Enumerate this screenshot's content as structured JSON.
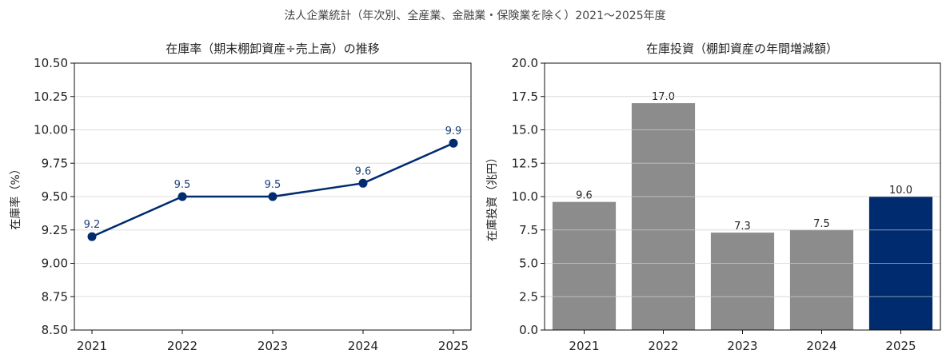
{
  "figure": {
    "suptitle": "法人企業統計（年次別、全産業、金融業・保険業を除く）2021〜2025年度"
  },
  "chart_data": [
    {
      "type": "line",
      "title": "在庫率（期末棚卸資産÷売上高）の推移",
      "xlabel": "",
      "ylabel": "在庫率（%）",
      "categories": [
        "2021",
        "2022",
        "2023",
        "2024",
        "2025"
      ],
      "values": [
        9.2,
        9.5,
        9.5,
        9.6,
        9.9
      ],
      "data_labels": [
        "9.2",
        "9.5",
        "9.5",
        "9.6",
        "9.9"
      ],
      "ylim": [
        8.5,
        10.5
      ],
      "yticks": [
        8.5,
        8.75,
        9.0,
        9.25,
        9.5,
        9.75,
        10.0,
        10.25,
        10.5
      ],
      "ytick_labels": [
        "8.50",
        "8.75",
        "9.00",
        "9.25",
        "9.50",
        "9.75",
        "10.00",
        "10.25",
        "10.50"
      ],
      "grid": true,
      "color": "#002b6e"
    },
    {
      "type": "bar",
      "title": "在庫投資（棚卸資産の年間増減額）",
      "xlabel": "",
      "ylabel": "在庫投資（兆円）",
      "categories": [
        "2021",
        "2022",
        "2023",
        "2024",
        "2025"
      ],
      "values": [
        9.6,
        17.0,
        7.3,
        7.5,
        10.0
      ],
      "data_labels": [
        "9.6",
        "17.0",
        "7.3",
        "7.5",
        "10.0"
      ],
      "ylim": [
        0.0,
        20.0
      ],
      "yticks": [
        0.0,
        2.5,
        5.0,
        7.5,
        10.0,
        12.5,
        15.0,
        17.5,
        20.0
      ],
      "ytick_labels": [
        "0.0",
        "2.5",
        "5.0",
        "7.5",
        "10.0",
        "12.5",
        "15.0",
        "17.5",
        "20.0"
      ],
      "grid": true,
      "bar_colors": [
        "#8c8c8c",
        "#8c8c8c",
        "#8c8c8c",
        "#8c8c8c",
        "#002b6e"
      ]
    }
  ]
}
